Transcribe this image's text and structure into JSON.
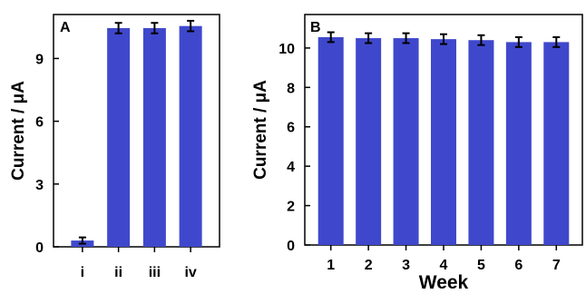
{
  "figure": {
    "bar_color": "#3f48cc",
    "axis_color": "#000000"
  },
  "chart_data": [
    {
      "panel": "A",
      "type": "bar",
      "categories": [
        "i",
        "ii",
        "iii",
        "iv"
      ],
      "values": [
        0.3,
        10.45,
        10.45,
        10.55
      ],
      "errors": [
        0.15,
        0.25,
        0.25,
        0.25
      ],
      "xlabel": "",
      "ylabel": "Current / μA",
      "ylim": [
        0,
        11.1
      ],
      "yticks": [
        0,
        3,
        6,
        9
      ],
      "grid": false
    },
    {
      "panel": "B",
      "type": "bar",
      "categories": [
        "1",
        "2",
        "3",
        "4",
        "5",
        "6",
        "7"
      ],
      "values": [
        10.55,
        10.5,
        10.5,
        10.45,
        10.4,
        10.3,
        10.3
      ],
      "errors": [
        0.25,
        0.25,
        0.25,
        0.25,
        0.25,
        0.25,
        0.25
      ],
      "xlabel": "Week",
      "ylabel": "Current / μA",
      "ylim": [
        0,
        11.7
      ],
      "yticks": [
        0,
        2,
        4,
        6,
        8,
        10
      ],
      "grid": false
    }
  ]
}
